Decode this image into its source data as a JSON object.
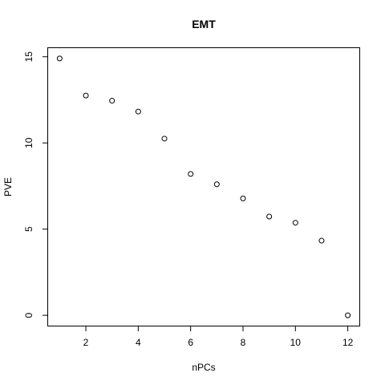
{
  "chart_data": {
    "type": "scatter",
    "title": "EMT",
    "xlabel": "nPCs",
    "ylabel": "PVE",
    "x": [
      1,
      2,
      3,
      4,
      5,
      6,
      7,
      8,
      9,
      10,
      11,
      12
    ],
    "y": [
      14.9,
      12.75,
      12.45,
      11.82,
      10.25,
      8.2,
      7.6,
      6.78,
      5.73,
      5.37,
      4.33,
      0.0
    ],
    "xlim": [
      0.56,
      12.44
    ],
    "ylim": [
      -0.6,
      15.5
    ],
    "xticks": [
      2,
      4,
      6,
      8,
      10,
      12
    ],
    "yticks": [
      0,
      5,
      10,
      15
    ],
    "grid": false,
    "marker": "open-circle"
  }
}
